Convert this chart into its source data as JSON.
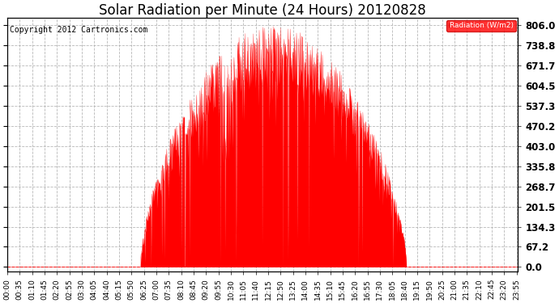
{
  "title": "Solar Radiation per Minute (24 Hours) 20120828",
  "copyright": "Copyright 2012 Cartronics.com",
  "legend_label": "Radiation (W/m2)",
  "yticks": [
    0.0,
    67.2,
    134.3,
    201.5,
    268.7,
    335.8,
    403.0,
    470.2,
    537.3,
    604.5,
    671.7,
    738.8,
    806.0
  ],
  "ymax": 830,
  "ymin": -15,
  "bar_color": "#ff0000",
  "line_color": "#ff0000",
  "grid_color": "#b0b0b0",
  "background_color": "#ffffff",
  "legend_bg": "#ff0000",
  "legend_text_color": "#ffffff",
  "title_fontsize": 12,
  "copyright_fontsize": 7,
  "tick_fontsize": 6.5,
  "ytick_fontsize": 8.5,
  "figwidth": 6.9,
  "figheight": 3.75,
  "dpi": 100,
  "tick_step_minutes": 35,
  "total_minutes": 1440,
  "sunrise_minute": 375,
  "sunset_minute": 1125,
  "peak_minute": 810,
  "peak_value": 806.0
}
